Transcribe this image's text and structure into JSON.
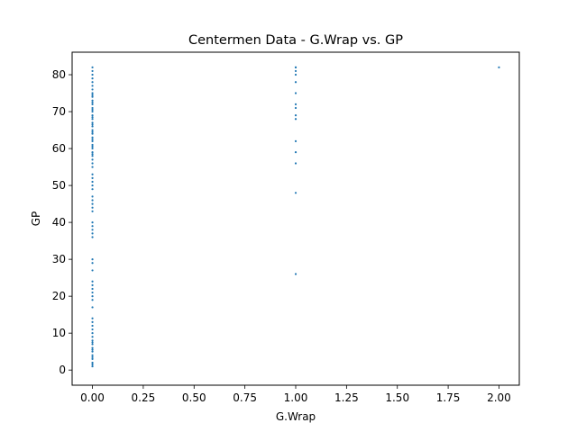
{
  "chart_data": {
    "type": "scatter",
    "title": "Centermen Data - G.Wrap vs. GP",
    "xlabel": "G.Wrap",
    "ylabel": "GP",
    "xlim": [
      -0.1,
      2.1
    ],
    "ylim": [
      -4.1,
      86.1
    ],
    "xticks": [
      0.0,
      0.25,
      0.5,
      0.75,
      1.0,
      1.25,
      1.5,
      1.75,
      2.0
    ],
    "xtick_labels": [
      "0.00",
      "0.25",
      "0.50",
      "0.75",
      "1.00",
      "1.25",
      "1.50",
      "1.75",
      "2.00"
    ],
    "yticks": [
      0,
      10,
      20,
      30,
      40,
      50,
      60,
      70,
      80
    ],
    "ytick_labels": [
      "0",
      "10",
      "20",
      "30",
      "40",
      "50",
      "60",
      "70",
      "80"
    ],
    "grid": false,
    "color": "#1f77b4",
    "series": [
      {
        "x": [
          0,
          0,
          0,
          0,
          0,
          0,
          0,
          0,
          0,
          0,
          0,
          0,
          0,
          0,
          0,
          0,
          0,
          0,
          0,
          0,
          0,
          0,
          0,
          0,
          0,
          0,
          0,
          0,
          0,
          0,
          0,
          0,
          0,
          0,
          0,
          0,
          0,
          0,
          0,
          0,
          0,
          0,
          0,
          0,
          0,
          0,
          0,
          0,
          0,
          0,
          0,
          0,
          0,
          0,
          0,
          0,
          0,
          0,
          0,
          0,
          0,
          0,
          0,
          0,
          0,
          0,
          0,
          0,
          0,
          0,
          0,
          0,
          0,
          0,
          0,
          0,
          0,
          0,
          0,
          0,
          1,
          1,
          1,
          1,
          1,
          1,
          1,
          1,
          1,
          1,
          1,
          1,
          1,
          1,
          1,
          2
        ],
        "y": [
          1,
          2,
          3,
          4,
          5,
          6,
          7,
          8,
          9,
          10,
          11,
          13,
          14,
          17,
          19,
          20,
          21,
          22,
          23,
          24,
          27,
          29,
          30,
          36,
          37,
          38,
          39,
          40,
          43,
          44,
          46,
          47,
          49,
          51,
          52,
          53,
          55,
          57,
          58,
          59,
          60,
          61,
          62,
          63,
          64,
          65,
          66,
          67,
          68,
          69,
          70,
          71,
          72,
          73,
          74,
          75,
          76,
          77,
          78,
          79,
          80,
          81,
          82,
          1.5,
          3.5,
          5.5,
          7.5,
          12,
          45,
          50,
          56,
          58.5,
          60.5,
          62.5,
          64.5,
          66.5,
          68.5,
          70.5,
          72.5,
          74.5,
          26,
          48,
          56,
          59,
          62,
          68,
          69,
          71,
          72,
          75,
          78,
          80,
          81,
          82,
          82,
          82
        ]
      }
    ]
  }
}
